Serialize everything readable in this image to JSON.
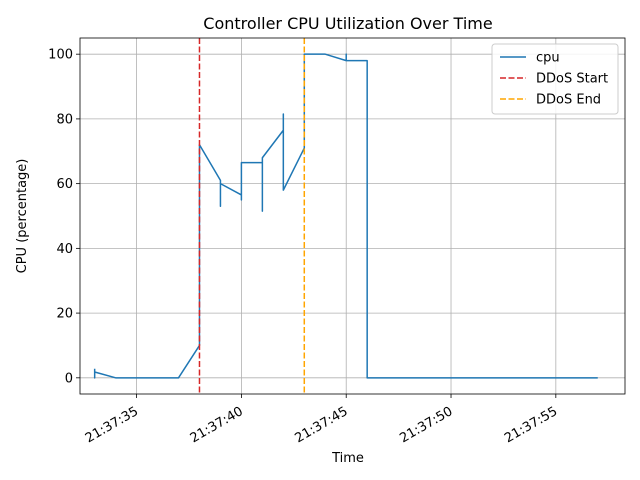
{
  "chart_data": {
    "type": "line",
    "title": "Controller CPU Utilization Over Time",
    "xlabel": "Time",
    "ylabel": "CPU (percentage)",
    "x_tick_labels": [
      "21:37:35",
      "21:37:40",
      "21:37:45",
      "21:37:50",
      "21:37:55"
    ],
    "x_tick_values": [
      "21:37:35",
      "21:37:40",
      "21:37:45",
      "21:37:50",
      "21:37:55"
    ],
    "xlim": [
      "21:37:32.3",
      "21:37:58.3"
    ],
    "y_ticks": [
      0,
      20,
      40,
      60,
      80,
      100
    ],
    "ylim": [
      -5,
      105
    ],
    "grid": true,
    "legend_position": "top-right",
    "series": [
      {
        "name": "cpu",
        "color": "#1f77b4",
        "points": [
          [
            "21:37:33.0",
            2.8
          ],
          [
            "21:37:33.0",
            0.0
          ],
          [
            "21:37:33.0",
            1.8
          ],
          [
            "21:37:34.0",
            0.0
          ],
          [
            "21:37:37.0",
            0.0
          ],
          [
            "21:37:38.0",
            10.0
          ],
          [
            "21:37:38.0",
            72.0
          ],
          [
            "21:37:39.0",
            61.0
          ],
          [
            "21:37:39.0",
            53.0
          ],
          [
            "21:37:39.0",
            60.0
          ],
          [
            "21:37:40.0",
            56.5
          ],
          [
            "21:37:40.0",
            55.0
          ],
          [
            "21:37:40.0",
            66.5
          ],
          [
            "21:37:41.0",
            66.5
          ],
          [
            "21:37:41.0",
            51.5
          ],
          [
            "21:37:41.0",
            68.0
          ],
          [
            "21:37:42.0",
            76.5
          ],
          [
            "21:37:42.0",
            81.5
          ],
          [
            "21:37:42.0",
            58.0
          ],
          [
            "21:37:43.0",
            71.0
          ],
          [
            "21:37:43.0",
            100.0
          ],
          [
            "21:37:44.0",
            100.0
          ],
          [
            "21:37:45.0",
            98.0
          ],
          [
            "21:37:45.0",
            100.0
          ],
          [
            "21:37:45.0",
            98.0
          ],
          [
            "21:37:46.0",
            98.0
          ],
          [
            "21:37:46.0",
            0.0
          ],
          [
            "21:37:57.0",
            0.0
          ]
        ]
      }
    ],
    "vlines": [
      {
        "name": "DDoS Start",
        "x": "21:37:38.0",
        "color": "#d62728",
        "style": "dashed"
      },
      {
        "name": "DDoS End",
        "x": "21:37:43.0",
        "color": "#ffa500",
        "style": "dashed"
      }
    ]
  }
}
